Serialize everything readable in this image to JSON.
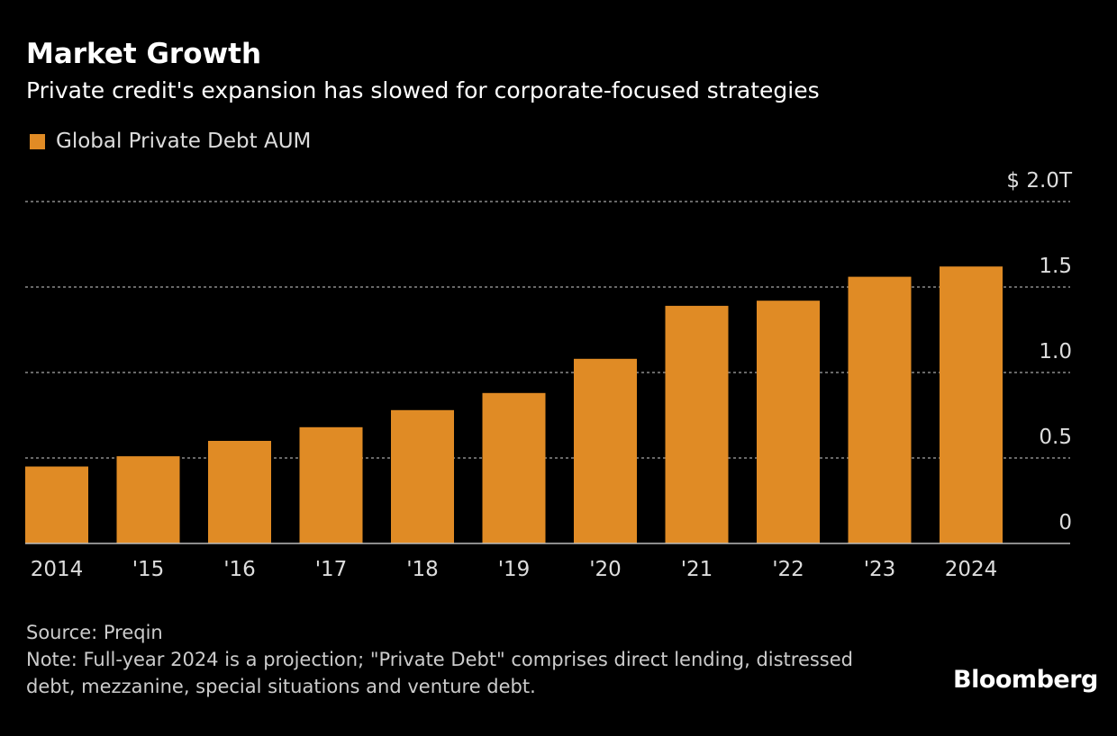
{
  "header": {
    "title": "Market Growth",
    "subtitle": "Private credit's expansion has slowed for corporate-focused strategies"
  },
  "chart_data": {
    "type": "bar",
    "categories": [
      "2014",
      "'15",
      "'16",
      "'17",
      "'18",
      "'19",
      "'20",
      "'21",
      "'22",
      "'23",
      "2024"
    ],
    "series": [
      {
        "name": "Global Private Debt AUM",
        "values": [
          0.45,
          0.51,
          0.6,
          0.68,
          0.78,
          0.88,
          1.08,
          1.39,
          1.42,
          1.56,
          1.62
        ],
        "color": "#e08b25"
      }
    ],
    "ylim": [
      0,
      2.0
    ],
    "yticks": [
      0,
      0.5,
      1.0,
      1.5,
      2.0
    ],
    "ytick_labels": [
      "0",
      "0.5",
      "1.0",
      "1.5",
      "$ 2.0T"
    ],
    "grid": true,
    "legend_position": "top-left",
    "y_axis_side": "right"
  },
  "footer": {
    "source": "Source: Preqin",
    "note": "Note: Full-year 2024 is a projection; \"Private Debt\" comprises direct lending, distressed debt, mezzanine, special situations and venture debt.",
    "brand": "Bloomberg"
  }
}
